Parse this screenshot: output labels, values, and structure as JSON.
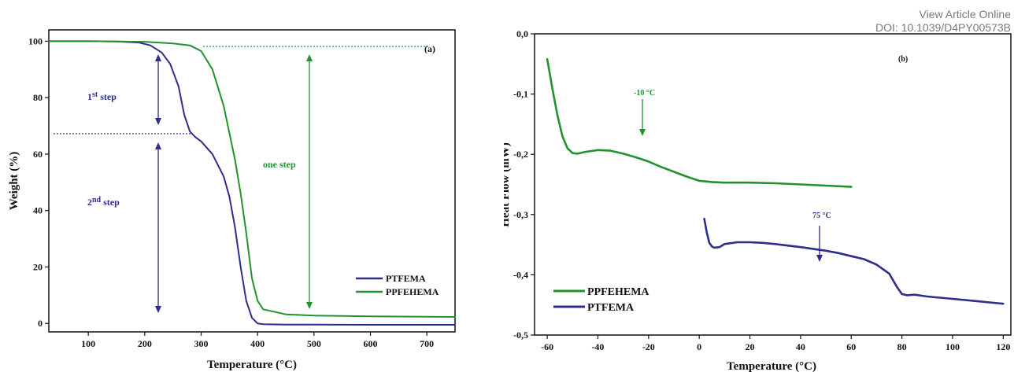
{
  "header": {
    "view_article": "View Article Online",
    "doi": "DOI: 10.1039/D4PY00573B"
  },
  "colors": {
    "PTFEMA": "#2d2d8f",
    "PPFEHEMA": "#22922e",
    "axis": "#111111"
  },
  "chart_data": [
    {
      "type": "line",
      "panel_label": "(a)",
      "xlabel": "Temperature (°C)",
      "ylabel": "Weight (%)",
      "xlim": [
        30,
        750
      ],
      "ylim": [
        -3,
        104
      ],
      "xticks": [
        100,
        200,
        300,
        400,
        500,
        600,
        700
      ],
      "yticks": [
        0,
        20,
        40,
        60,
        80,
        100
      ],
      "legend_position": "bottom-right",
      "series": [
        {
          "name": "PTFEMA",
          "x": [
            30,
            100,
            150,
            190,
            210,
            230,
            245,
            260,
            270,
            280,
            290,
            300,
            320,
            340,
            350,
            360,
            370,
            380,
            390,
            400,
            410,
            450,
            500,
            600,
            750
          ],
          "y": [
            100,
            100,
            99.9,
            99.5,
            98.5,
            96,
            92,
            84,
            74,
            68,
            66,
            64.5,
            60,
            52,
            45,
            34,
            20,
            8,
            2,
            0,
            -0.3,
            -0.4,
            -0.4,
            -0.5,
            -0.5
          ]
        },
        {
          "name": "PPFEHEMA",
          "x": [
            30,
            100,
            200,
            250,
            280,
            300,
            320,
            340,
            360,
            370,
            380,
            390,
            400,
            410,
            450,
            500,
            600,
            750
          ],
          "y": [
            100,
            100,
            99.8,
            99.2,
            98.5,
            96.5,
            90,
            77,
            58,
            46,
            32,
            16,
            8,
            5,
            3.2,
            2.8,
            2.5,
            2.3
          ]
        }
      ],
      "annotations": {
        "step1_base": "1",
        "step1_sup": "st",
        "step1_word": "step",
        "step2_base": "2",
        "step2_sup": "nd",
        "step2_word": "step",
        "one_step": "one step"
      }
    },
    {
      "type": "line",
      "panel_label": "(b)",
      "xlabel": "Temperature (°C)",
      "ylabel": "Heat Flow (mW)",
      "xlim": [
        -65,
        123
      ],
      "ylim": [
        -0.5,
        0.0
      ],
      "xticks": [
        -60,
        -40,
        -20,
        0,
        20,
        40,
        60,
        80,
        100,
        120
      ],
      "yticks": [
        0.0,
        -0.1,
        -0.2,
        -0.3,
        -0.4,
        -0.5
      ],
      "ytick_labels": [
        "0,0",
        "-0,1",
        "-0,2",
        "-0,3",
        "-0,4",
        "-0,5"
      ],
      "legend_position": "bottom-left",
      "series": [
        {
          "name": "PPFEHEMA",
          "x": [
            -60,
            -58,
            -56,
            -54,
            -52,
            -50,
            -48,
            -45,
            -40,
            -35,
            -30,
            -25,
            -20,
            -15,
            -10,
            -5,
            0,
            5,
            10,
            20,
            30,
            40,
            50,
            60
          ],
          "y": [
            -0.042,
            -0.09,
            -0.135,
            -0.17,
            -0.19,
            -0.198,
            -0.199,
            -0.196,
            -0.193,
            -0.194,
            -0.199,
            -0.205,
            -0.212,
            -0.221,
            -0.229,
            -0.237,
            -0.244,
            -0.246,
            -0.247,
            -0.247,
            -0.248,
            -0.25,
            -0.252,
            -0.254
          ]
        },
        {
          "name": "PTFEMA",
          "x": [
            2,
            3,
            4,
            5,
            6,
            8,
            10,
            15,
            20,
            25,
            30,
            40,
            50,
            55,
            60,
            65,
            70,
            75,
            78,
            80,
            82,
            85,
            90,
            100,
            110,
            120
          ],
          "y": [
            -0.307,
            -0.33,
            -0.347,
            -0.353,
            -0.355,
            -0.354,
            -0.349,
            -0.346,
            -0.346,
            -0.347,
            -0.349,
            -0.354,
            -0.36,
            -0.364,
            -0.369,
            -0.374,
            -0.383,
            -0.398,
            -0.42,
            -0.432,
            -0.434,
            -0.433,
            -0.436,
            -0.44,
            -0.444,
            -0.448
          ]
        }
      ],
      "annotations": {
        "tg1_label": "-10 °C",
        "tg2_label": "75 °C"
      }
    }
  ]
}
